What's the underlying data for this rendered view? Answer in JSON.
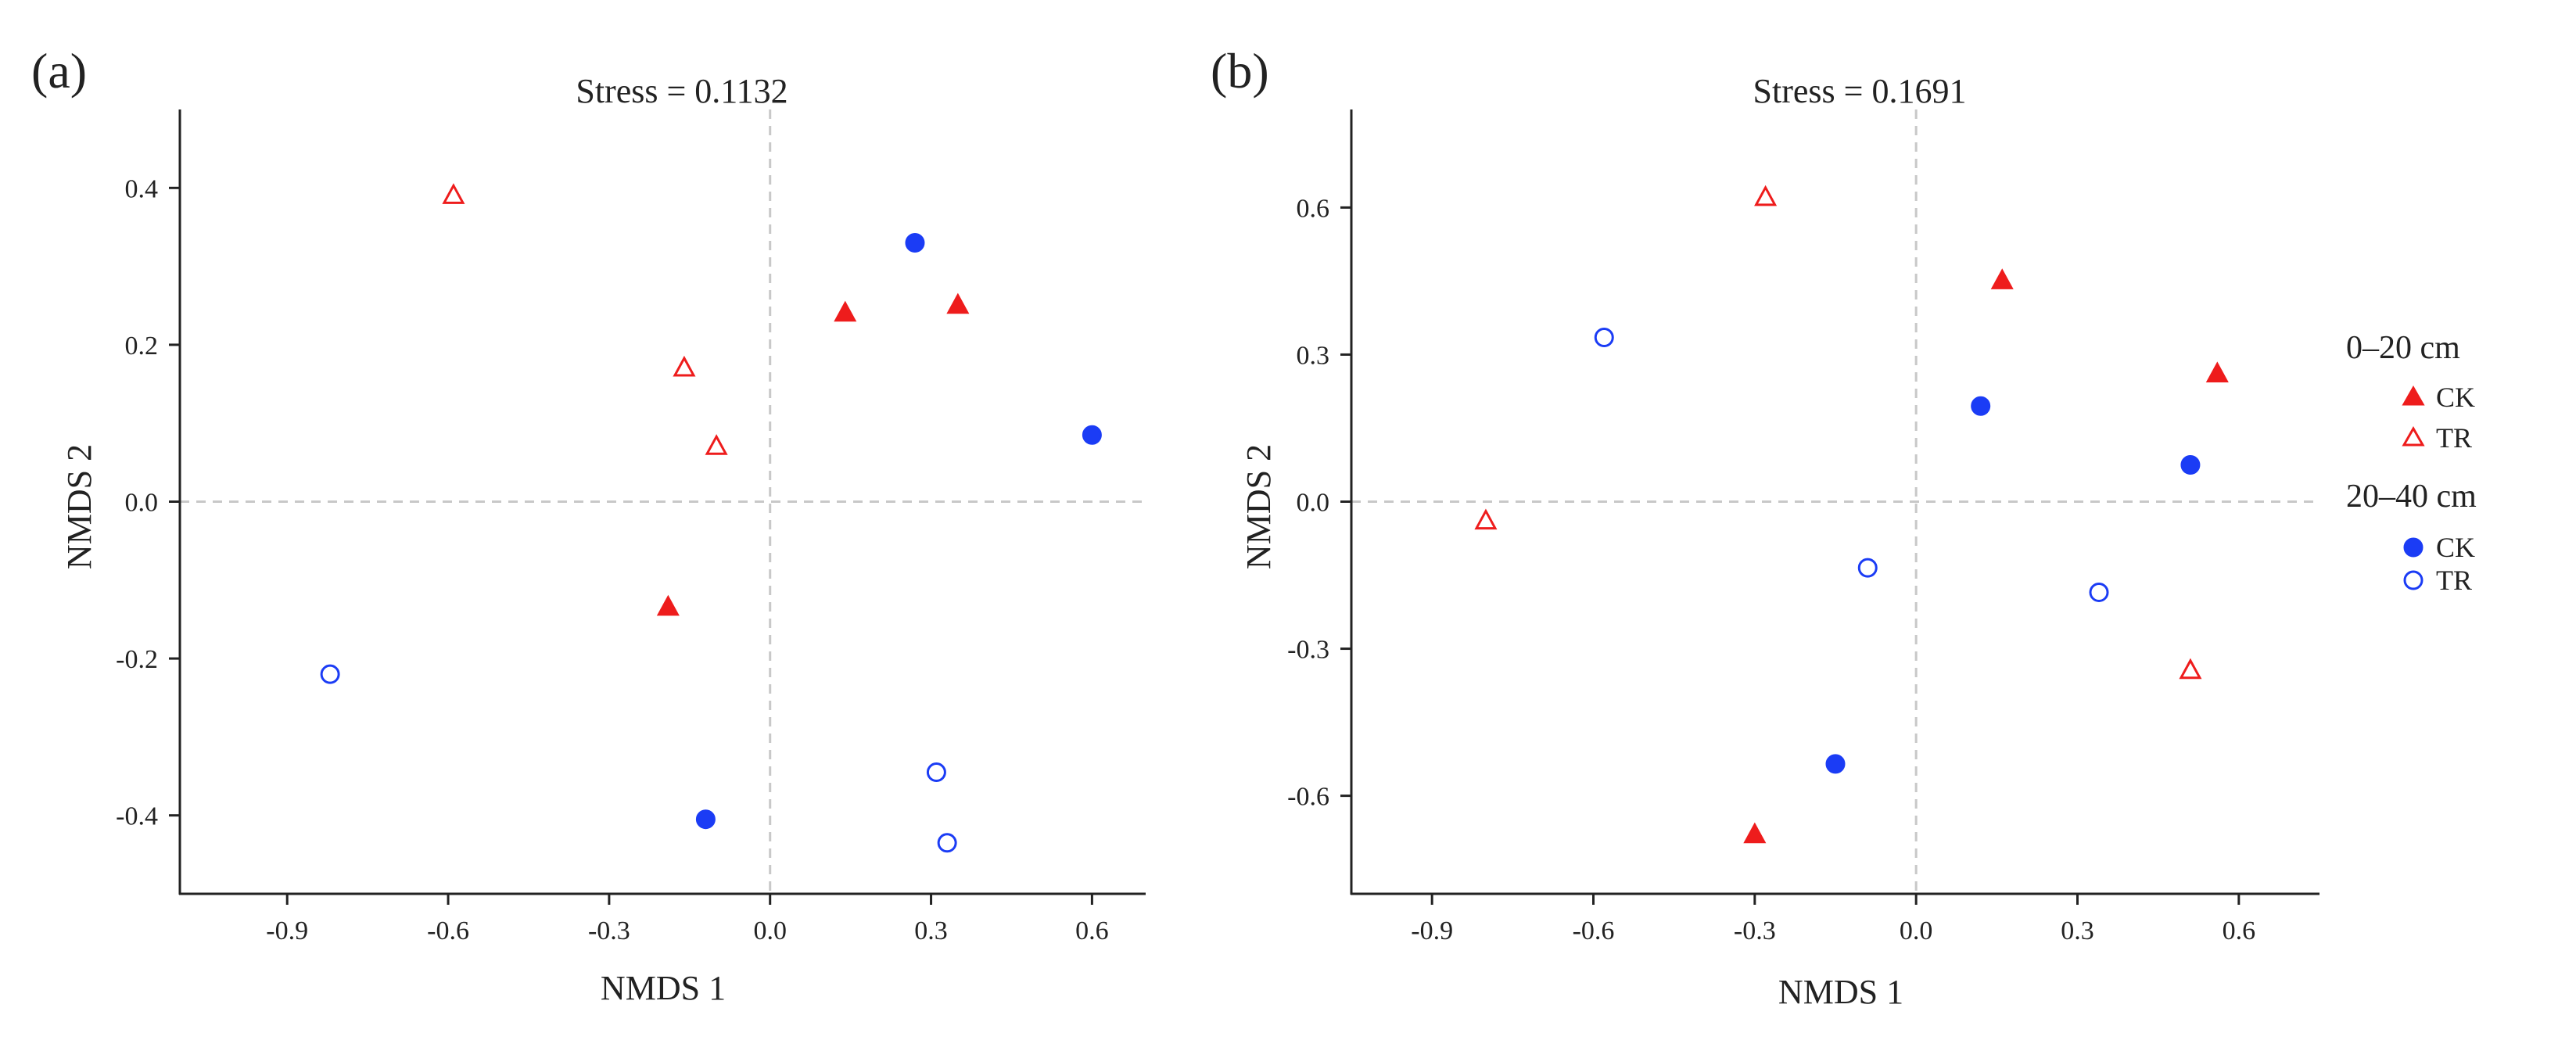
{
  "colors": {
    "red": "#ee1c1c",
    "blue": "#1b3cf5",
    "axis": "#222222",
    "zero_line": "#c8c8c8"
  },
  "legend": {
    "groups": [
      {
        "title": "0–20 cm",
        "color": "#ee1c1c",
        "shape": "triangle",
        "items": [
          {
            "label": "CK",
            "filled": true
          },
          {
            "label": "TR",
            "filled": false
          }
        ]
      },
      {
        "title": "20–40 cm",
        "color": "#1b3cf5",
        "shape": "circle",
        "items": [
          {
            "label": "CK",
            "filled": true
          },
          {
            "label": "TR",
            "filled": false
          }
        ]
      }
    ]
  },
  "chart_data": [
    {
      "panel": "(a)",
      "type": "scatter",
      "title": "Stress = 0.1132",
      "xlabel": "NMDS 1",
      "ylabel": "NMDS 2",
      "xlim": [
        -1.1,
        0.7
      ],
      "ylim": [
        -0.5,
        0.5
      ],
      "xticks": [
        -0.9,
        -0.6,
        -0.3,
        0.0,
        0.3,
        0.6
      ],
      "xtick_labels": [
        "-0.9",
        "-0.6",
        "-0.3",
        "0.0",
        "0.3",
        "0.6"
      ],
      "yticks": [
        -0.4,
        -0.2,
        0.0,
        0.2,
        0.4
      ],
      "ytick_labels": [
        "-0.4",
        "-0.2",
        "0.0",
        "0.2",
        "0.4"
      ],
      "series": [
        {
          "name": "0–20 cm CK",
          "shape": "triangle",
          "filled": true,
          "color": "#ee1c1c",
          "points": [
            [
              0.14,
              0.24
            ],
            [
              0.35,
              0.25
            ],
            [
              -0.19,
              -0.135
            ]
          ]
        },
        {
          "name": "0–20 cm TR",
          "shape": "triangle",
          "filled": false,
          "color": "#ee1c1c",
          "points": [
            [
              -0.59,
              0.39
            ],
            [
              -0.16,
              0.17
            ],
            [
              -0.1,
              0.07
            ]
          ]
        },
        {
          "name": "20–40 cm CK",
          "shape": "circle",
          "filled": true,
          "color": "#1b3cf5",
          "points": [
            [
              0.27,
              0.33
            ],
            [
              0.6,
              0.085
            ],
            [
              -0.12,
              -0.405
            ]
          ]
        },
        {
          "name": "20–40 cm TR",
          "shape": "circle",
          "filled": false,
          "color": "#1b3cf5",
          "points": [
            [
              -0.82,
              -0.22
            ],
            [
              0.31,
              -0.345
            ],
            [
              0.33,
              -0.435
            ]
          ]
        }
      ]
    },
    {
      "panel": "(b)",
      "type": "scatter",
      "title": "Stress = 0.1691",
      "xlabel": "NMDS 1",
      "ylabel": "NMDS 2",
      "xlim": [
        -1.05,
        0.75
      ],
      "ylim": [
        -0.8,
        0.8
      ],
      "xticks": [
        -0.9,
        -0.6,
        -0.3,
        0.0,
        0.3,
        0.6
      ],
      "xtick_labels": [
        "-0.9",
        "-0.6",
        "-0.3",
        "0.0",
        "0.3",
        "0.6"
      ],
      "yticks": [
        -0.6,
        -0.3,
        0.0,
        0.3,
        0.6
      ],
      "ytick_labels": [
        "-0.6",
        "-0.3",
        "0.0",
        "0.3",
        "0.6"
      ],
      "series": [
        {
          "name": "0–20 cm CK",
          "shape": "triangle",
          "filled": true,
          "color": "#ee1c1c",
          "points": [
            [
              0.16,
              0.45
            ],
            [
              0.56,
              0.26
            ],
            [
              -0.3,
              -0.68
            ]
          ]
        },
        {
          "name": "0–20 cm TR",
          "shape": "triangle",
          "filled": false,
          "color": "#ee1c1c",
          "points": [
            [
              -0.28,
              0.62
            ],
            [
              -0.8,
              -0.04
            ],
            [
              0.51,
              -0.345
            ]
          ]
        },
        {
          "name": "20–40 cm CK",
          "shape": "circle",
          "filled": true,
          "color": "#1b3cf5",
          "points": [
            [
              0.12,
              0.195
            ],
            [
              0.51,
              0.075
            ],
            [
              -0.15,
              -0.535
            ]
          ]
        },
        {
          "name": "20–40 cm TR",
          "shape": "circle",
          "filled": false,
          "color": "#1b3cf5",
          "points": [
            [
              -0.58,
              0.335
            ],
            [
              -0.09,
              -0.135
            ],
            [
              0.34,
              -0.185
            ]
          ]
        }
      ]
    }
  ]
}
